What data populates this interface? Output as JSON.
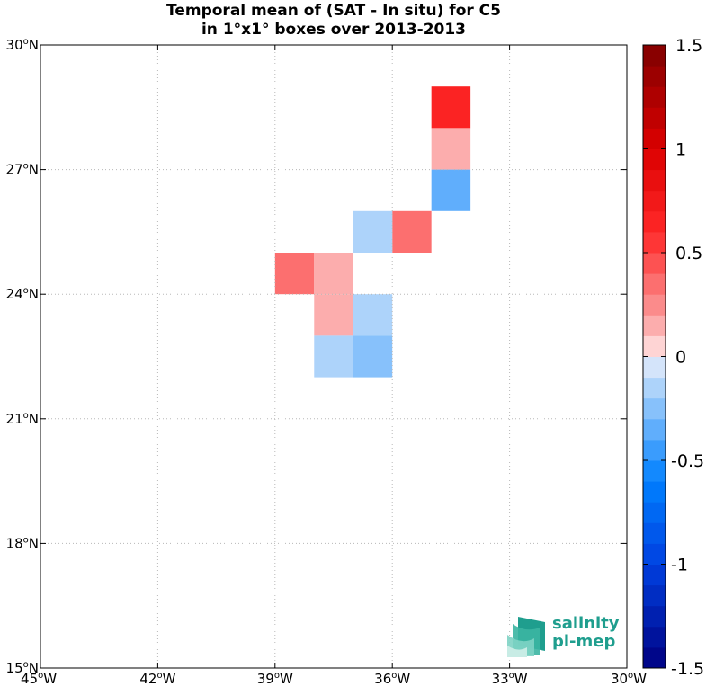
{
  "title_line1": "Temporal mean of (SAT - In situ) for C5",
  "title_line2": "in 1°x1° boxes over 2013-2013",
  "chart_data": {
    "type": "heatmap",
    "xlim": [
      -45,
      -30
    ],
    "ylim": [
      15,
      30
    ],
    "x_ticks": [
      -45,
      -42,
      -39,
      -36,
      -33,
      -30
    ],
    "x_tick_labels": [
      "45°W",
      "42°W",
      "39°W",
      "36°W",
      "33°W",
      "30°W"
    ],
    "y_ticks": [
      15,
      18,
      21,
      24,
      27,
      30
    ],
    "y_tick_labels": [
      "15°N",
      "18°N",
      "21°N",
      "24°N",
      "27°N",
      "30°N"
    ],
    "grid": true,
    "cell_size_deg": 1,
    "cells": [
      {
        "lon": -35,
        "lat": 28,
        "value": 0.6
      },
      {
        "lon": -35,
        "lat": 27,
        "value": 0.15
      },
      {
        "lon": -35,
        "lat": 26,
        "value": -0.4
      },
      {
        "lon": -36,
        "lat": 25,
        "value": 0.3
      },
      {
        "lon": -37,
        "lat": 25,
        "value": -0.15
      },
      {
        "lon": -39,
        "lat": 24,
        "value": 0.3
      },
      {
        "lon": -38,
        "lat": 24,
        "value": 0.15
      },
      {
        "lon": -38,
        "lat": 23,
        "value": 0.15
      },
      {
        "lon": -37,
        "lat": 23,
        "value": -0.15
      },
      {
        "lon": -38,
        "lat": 22,
        "value": -0.15
      },
      {
        "lon": -37,
        "lat": 22,
        "value": -0.25
      }
    ],
    "colorbar": {
      "range": [
        -1.5,
        1.5
      ],
      "levels": 30,
      "tick_values": [
        1.5,
        1,
        0.5,
        0,
        -0.5,
        -1,
        -1.5
      ],
      "tick_labels": [
        "1.5",
        "1",
        "0.5",
        "0",
        "-0.5",
        "-1",
        "-1.5"
      ]
    }
  },
  "logo": {
    "line1": "salinity",
    "line2": "pi-mep",
    "color": "#1f9e8e"
  }
}
